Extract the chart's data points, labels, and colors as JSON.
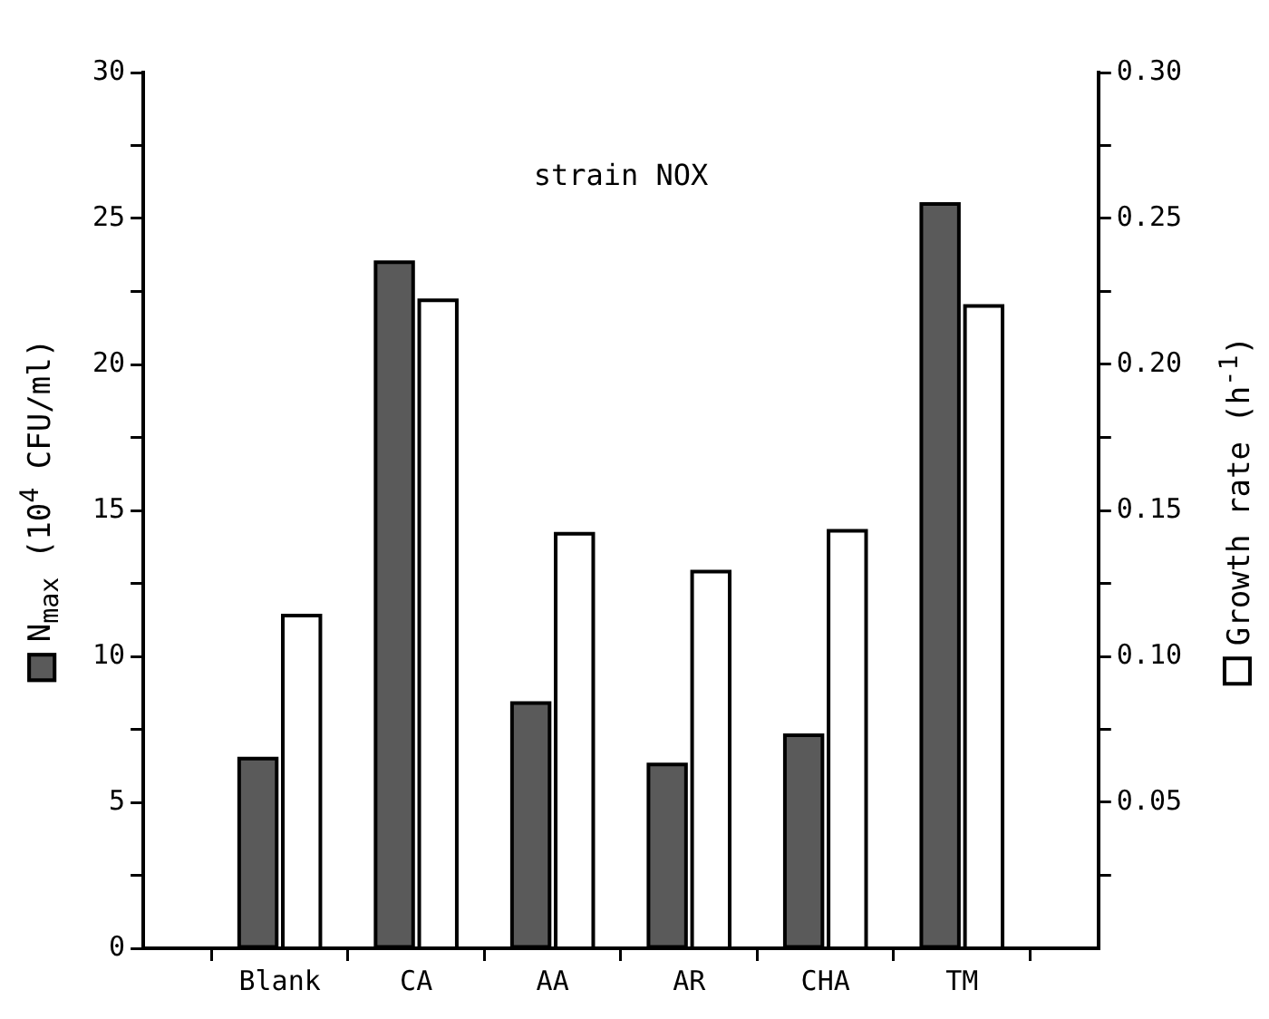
{
  "chart_data": {
    "type": "bar",
    "ylabel": "N$_{max}$ (10$^{4}$ CFU/ml)",
    "y2label": "Growth rate (h$^{-1}$)",
    "annotations": [
      "strain NOX"
    ],
    "categories": [
      "Blank",
      "CA",
      "AA",
      "AR",
      "CHA",
      "TM"
    ],
    "series": [
      {
        "color": "#5a5a5a",
        "values": [
          6.5,
          23.5,
          8.4,
          6.3,
          7.3,
          25.5
        ]
      },
      {
        "color": "#ffffff",
        "axis": "y2",
        "values": [
          0.114,
          0.222,
          0.142,
          0.129,
          0.143,
          0.22
        ]
      }
    ],
    "ylim": [
      0,
      30
    ],
    "yticks": [
      0,
      {
        "value": 2.5,
        "label": null
      },
      5,
      {
        "value": 7.5,
        "label": null
      },
      10,
      {
        "value": 12.5,
        "label": null
      },
      15,
      {
        "value": 17.5,
        "label": null
      },
      20,
      {
        "value": 22.5,
        "label": null
      },
      25,
      {
        "value": 27.5,
        "label": null
      },
      30
    ],
    "y2lim": [
      0,
      0.3
    ],
    "y2ticks": [
      {
        "value": 0.025,
        "label": null
      },
      {
        "value": 0.05,
        "label": "0.05"
      },
      {
        "value": 0.075,
        "label": null
      },
      {
        "value": 0.1,
        "label": "0.10"
      },
      {
        "value": 0.125,
        "label": null
      },
      {
        "value": 0.15,
        "label": "0.15"
      },
      {
        "value": 0.175,
        "label": null
      },
      {
        "value": 0.2,
        "label": "0.20"
      },
      {
        "value": 0.225,
        "label": null
      },
      {
        "value": 0.25,
        "label": "0.25"
      },
      {
        "value": 0.275,
        "label": null
      },
      {
        "value": 0.3,
        "label": "0.30"
      }
    ],
    "grid": false,
    "legend": false
  }
}
